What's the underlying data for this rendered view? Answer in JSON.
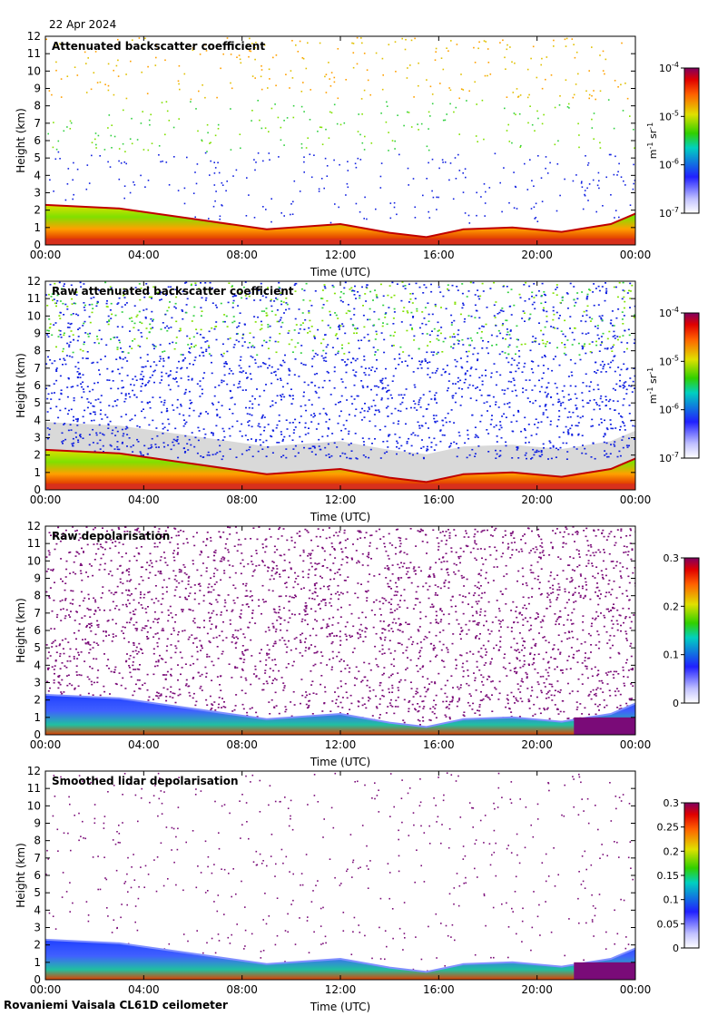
{
  "date": "22 Apr 2024",
  "station": "Rovaniemi Vaisala CL61D ceilometer",
  "colors": {
    "ground": "#d8301c",
    "noise": "#d9d9d9",
    "purple": "#7a0b78",
    "blue": "#1020e0"
  },
  "chart_data": [
    {
      "type": "heatmap",
      "title": "Attenuated backscatter coefficient",
      "xlabel": "Time (UTC)",
      "ylabel": "Height (km)",
      "xlim": [
        "00:00",
        "24:00"
      ],
      "ylim": [
        0,
        12
      ],
      "x_ticks": [
        "00:00",
        "04:00",
        "08:00",
        "12:00",
        "16:00",
        "20:00",
        "00:00"
      ],
      "y_ticks": [
        "0",
        "1",
        "2",
        "3",
        "4",
        "5",
        "6",
        "7",
        "8",
        "9",
        "10",
        "11",
        "12"
      ],
      "colorbar": {
        "scale": "log",
        "range": [
          1e-07,
          0.0001
        ],
        "ticks": [
          {
            "base": "10",
            "exp": "-4"
          },
          {
            "base": "10",
            "exp": "-5"
          },
          {
            "base": "10",
            "exp": "-6"
          },
          {
            "base": "10",
            "exp": "-7"
          }
        ],
        "unit": {
          "m": "m",
          "m_exp": "-1",
          "sr": "sr",
          "sr_exp": "-1"
        }
      },
      "noise": "sparse",
      "top_layer_km": [
        [
          0,
          2.3
        ],
        [
          3,
          2.1
        ],
        [
          6,
          1.5
        ],
        [
          9,
          0.9
        ],
        [
          12,
          1.2
        ],
        [
          14,
          0.7
        ],
        [
          15.5,
          0.45
        ],
        [
          17,
          0.9
        ],
        [
          19,
          1.0
        ],
        [
          21,
          0.75
        ],
        [
          23,
          1.2
        ],
        [
          24,
          1.8
        ]
      ]
    },
    {
      "type": "heatmap",
      "title": "Raw attenuated backscatter coefficient",
      "xlabel": "Time (UTC)",
      "ylabel": "Height (km)",
      "xlim": [
        "00:00",
        "24:00"
      ],
      "ylim": [
        0,
        12
      ],
      "x_ticks": [
        "00:00",
        "04:00",
        "08:00",
        "12:00",
        "16:00",
        "20:00",
        "00:00"
      ],
      "y_ticks": [
        "0",
        "1",
        "2",
        "3",
        "4",
        "5",
        "6",
        "7",
        "8",
        "9",
        "10",
        "11",
        "12"
      ],
      "colorbar": {
        "scale": "log",
        "range": [
          1e-07,
          0.0001
        ],
        "ticks": [
          {
            "base": "10",
            "exp": "-4"
          },
          {
            "base": "10",
            "exp": "-5"
          },
          {
            "base": "10",
            "exp": "-6"
          },
          {
            "base": "10",
            "exp": "-7"
          }
        ],
        "unit": {
          "m": "m",
          "m_exp": "-1",
          "sr": "sr",
          "sr_exp": "-1"
        }
      },
      "noise": "dense-blue",
      "top_layer_km": [
        [
          0,
          2.3
        ],
        [
          3,
          2.1
        ],
        [
          6,
          1.5
        ],
        [
          9,
          0.9
        ],
        [
          12,
          1.2
        ],
        [
          14,
          0.7
        ],
        [
          15.5,
          0.45
        ],
        [
          17,
          0.9
        ],
        [
          19,
          1.0
        ],
        [
          21,
          0.75
        ],
        [
          23,
          1.2
        ],
        [
          24,
          1.8
        ]
      ]
    },
    {
      "type": "heatmap",
      "title": "Raw depolarisation",
      "xlabel": "Time (UTC)",
      "ylabel": "Height (km)",
      "xlim": [
        "00:00",
        "24:00"
      ],
      "ylim": [
        0,
        12
      ],
      "x_ticks": [
        "00:00",
        "04:00",
        "08:00",
        "12:00",
        "16:00",
        "20:00",
        "00:00"
      ],
      "y_ticks": [
        "0",
        "1",
        "2",
        "3",
        "4",
        "5",
        "6",
        "7",
        "8",
        "9",
        "10",
        "11",
        "12"
      ],
      "colorbar": {
        "scale": "linear",
        "range": [
          0,
          0.3
        ],
        "ticks": [
          {
            "base": "0.3"
          },
          {
            "base": "0.2"
          },
          {
            "base": "0.1"
          },
          {
            "base": "0"
          }
        ]
      },
      "noise": "dense-purple",
      "top_layer_km": [
        [
          0,
          2.3
        ],
        [
          3,
          2.1
        ],
        [
          6,
          1.5
        ],
        [
          9,
          0.9
        ],
        [
          12,
          1.2
        ],
        [
          14,
          0.7
        ],
        [
          15.5,
          0.45
        ],
        [
          17,
          0.9
        ],
        [
          19,
          1.0
        ],
        [
          21,
          0.75
        ],
        [
          23,
          1.2
        ],
        [
          24,
          1.8
        ]
      ]
    },
    {
      "type": "heatmap",
      "title": "Smoothed lidar depolarisation",
      "xlabel": "Time (UTC)",
      "ylabel": "Height (km)",
      "xlim": [
        "00:00",
        "24:00"
      ],
      "ylim": [
        0,
        12
      ],
      "x_ticks": [
        "00:00",
        "04:00",
        "08:00",
        "12:00",
        "16:00",
        "20:00",
        "00:00"
      ],
      "y_ticks": [
        "0",
        "1",
        "2",
        "3",
        "4",
        "5",
        "6",
        "7",
        "8",
        "9",
        "10",
        "11",
        "12"
      ],
      "colorbar": {
        "scale": "linear",
        "range": [
          0,
          0.3
        ],
        "ticks": [
          {
            "base": "0.3"
          },
          {
            "base": "0.25"
          },
          {
            "base": "0.2"
          },
          {
            "base": "0.15"
          },
          {
            "base": "0.1"
          },
          {
            "base": "0.05"
          },
          {
            "base": "0"
          }
        ]
      },
      "noise": "sparse-purple",
      "top_layer_km": [
        [
          0,
          2.3
        ],
        [
          3,
          2.1
        ],
        [
          6,
          1.5
        ],
        [
          9,
          0.9
        ],
        [
          12,
          1.2
        ],
        [
          14,
          0.7
        ],
        [
          15.5,
          0.45
        ],
        [
          17,
          0.9
        ],
        [
          19,
          1.0
        ],
        [
          21,
          0.75
        ],
        [
          23,
          1.2
        ],
        [
          24,
          1.8
        ]
      ]
    }
  ]
}
